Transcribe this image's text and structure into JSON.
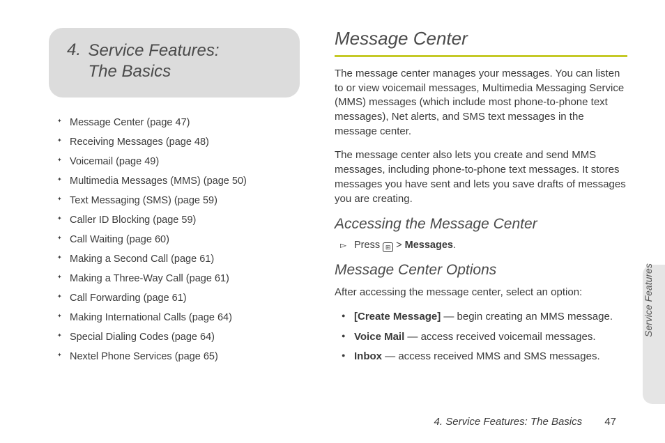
{
  "chapter": {
    "number": "4.",
    "title_line1": "Service Features:",
    "title_line2": "The Basics"
  },
  "toc": [
    "Message Center (page 47)",
    "Receiving Messages (page 48)",
    "Voicemail (page 49)",
    "Multimedia Messages (MMS) (page 50)",
    "Text Messaging (SMS) (page 59)",
    "Caller ID Blocking (page 59)",
    "Call Waiting (page 60)",
    "Making a Second Call (page 61)",
    "Making a Three-Way Call (page 61)",
    "Call Forwarding (page 61)",
    "Making International Calls (page 64)",
    "Special Dialing Codes (page 64)",
    "Nextel Phone Services (page 65)"
  ],
  "section": {
    "title": "Message Center",
    "paragraphs": [
      "The message center manages your messages. You can listen to or view voicemail messages, Multimedia Messaging Service (MMS) messages (which include most phone-to-phone text messages), Net alerts, and SMS text messages in the message center.",
      "The message center also lets you create and send MMS messages, including phone-to-phone text messages. It stores messages you have sent and lets you save drafts of messages you are creating."
    ],
    "sub1": {
      "title": "Accessing the Message Center",
      "step_prefix": "Press ",
      "step_key_glyph": "⊞",
      "step_suffix": " > ",
      "step_bold": "Messages",
      "step_period": "."
    },
    "sub2": {
      "title": "Message Center Options",
      "intro": "After accessing the message center, select an option:",
      "options": [
        {
          "bold": "[Create Message]",
          "rest": " — begin creating an MMS message."
        },
        {
          "bold": "Voice Mail",
          "rest": " — access received voicemail messages."
        },
        {
          "bold": "Inbox",
          "rest": " — access received MMS and SMS messages."
        }
      ]
    }
  },
  "side_tab": "Service Features",
  "footer": {
    "text": "4. Service Features: The Basics",
    "page": "47"
  },
  "colors": {
    "rule": "#c5c926",
    "chapter_bg": "#dcdcdc",
    "tab_bg": "#e5e5e5",
    "text": "#3a3a3a"
  }
}
